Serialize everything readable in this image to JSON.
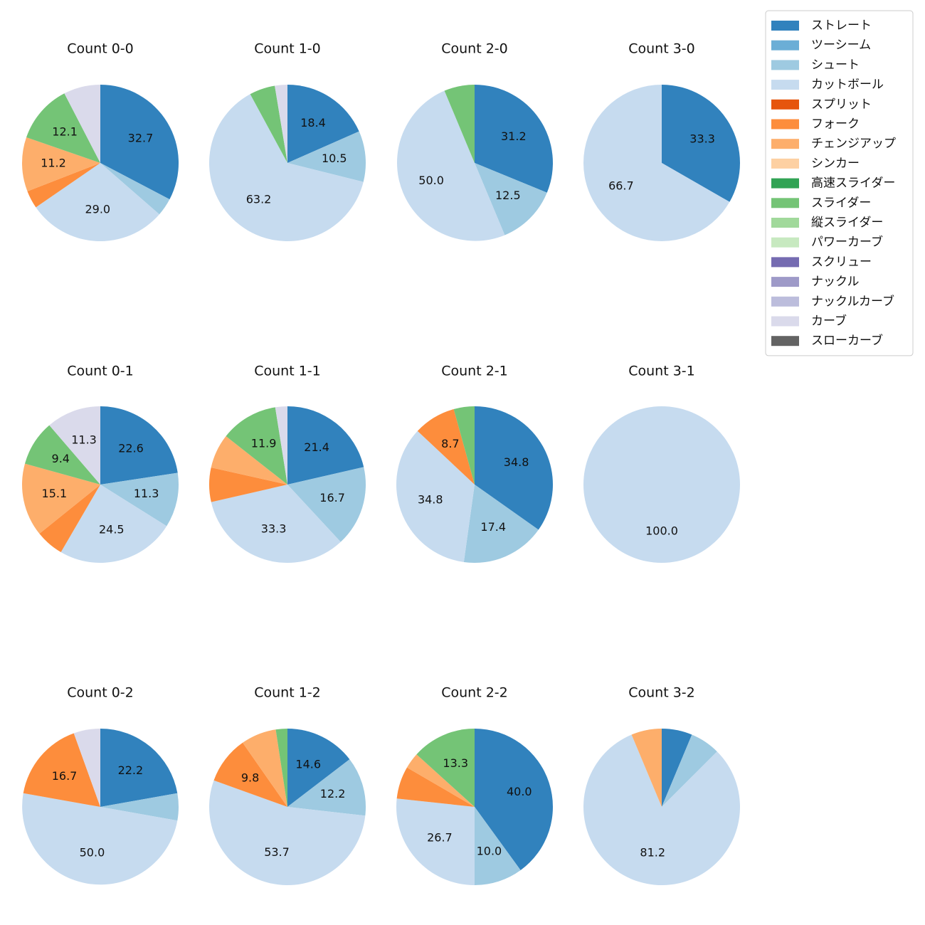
{
  "colors": {
    "ストレート": "#3182bd",
    "ツーシーム": "#6baed6",
    "シュート": "#9ecae1",
    "カットボール": "#c6dbef",
    "スプリット": "#e6550d",
    "フォーク": "#fd8d3c",
    "チェンジアップ": "#fdae6b",
    "シンカー": "#fdd0a2",
    "高速スライダー": "#31a354",
    "スライダー": "#74c476",
    "縦スライダー": "#a1d99b",
    "パワーカーブ": "#c7e9c0",
    "スクリュー": "#756bb1",
    "ナックル": "#9e9ac8",
    "ナックルカーブ": "#bcbddc",
    "カーブ": "#dadaeb",
    "スローカーブ": "#636363"
  },
  "chart_data": {
    "type": "pie",
    "legend_position": "top-right",
    "legend": [
      "ストレート",
      "ツーシーム",
      "シュート",
      "カットボール",
      "スプリット",
      "フォーク",
      "チェンジアップ",
      "シンカー",
      "高速スライダー",
      "スライダー",
      "縦スライダー",
      "パワーカーブ",
      "スクリュー",
      "ナックル",
      "ナックルカーブ",
      "カーブ",
      "スローカーブ"
    ],
    "charts": [
      {
        "title": "Count 0-0",
        "slices": [
          {
            "pitch": "ストレート",
            "value": 32.7,
            "label": "32.7"
          },
          {
            "pitch": "シュート",
            "value": 3.7
          },
          {
            "pitch": "カットボール",
            "value": 29.0,
            "label": "29.0"
          },
          {
            "pitch": "フォーク",
            "value": 3.7
          },
          {
            "pitch": "チェンジアップ",
            "value": 11.2,
            "label": "11.2"
          },
          {
            "pitch": "スライダー",
            "value": 12.1,
            "label": "12.1"
          },
          {
            "pitch": "カーブ",
            "value": 7.6
          }
        ]
      },
      {
        "title": "Count 1-0",
        "slices": [
          {
            "pitch": "ストレート",
            "value": 18.4,
            "label": "18.4"
          },
          {
            "pitch": "シュート",
            "value": 10.5,
            "label": "10.5"
          },
          {
            "pitch": "カットボール",
            "value": 63.2,
            "label": "63.2"
          },
          {
            "pitch": "スライダー",
            "value": 5.3
          },
          {
            "pitch": "カーブ",
            "value": 2.6
          }
        ]
      },
      {
        "title": "Count 2-0",
        "slices": [
          {
            "pitch": "ストレート",
            "value": 31.2,
            "label": "31.2"
          },
          {
            "pitch": "シュート",
            "value": 12.5,
            "label": "12.5"
          },
          {
            "pitch": "カットボール",
            "value": 50.0,
            "label": "50.0"
          },
          {
            "pitch": "スライダー",
            "value": 6.3
          }
        ]
      },
      {
        "title": "Count 3-0",
        "slices": [
          {
            "pitch": "ストレート",
            "value": 33.3,
            "label": "33.3"
          },
          {
            "pitch": "カットボール",
            "value": 66.7,
            "label": "66.7"
          }
        ]
      },
      {
        "title": "Count 0-1",
        "slices": [
          {
            "pitch": "ストレート",
            "value": 22.6,
            "label": "22.6"
          },
          {
            "pitch": "シュート",
            "value": 11.3,
            "label": "11.3"
          },
          {
            "pitch": "カットボール",
            "value": 24.5,
            "label": "24.5"
          },
          {
            "pitch": "フォーク",
            "value": 5.8
          },
          {
            "pitch": "チェンジアップ",
            "value": 15.1,
            "label": "15.1"
          },
          {
            "pitch": "スライダー",
            "value": 9.4,
            "label": "9.4"
          },
          {
            "pitch": "カーブ",
            "value": 11.3,
            "label": "11.3"
          }
        ]
      },
      {
        "title": "Count 1-1",
        "slices": [
          {
            "pitch": "ストレート",
            "value": 21.4,
            "label": "21.4"
          },
          {
            "pitch": "シュート",
            "value": 16.7,
            "label": "16.7"
          },
          {
            "pitch": "カットボール",
            "value": 33.3,
            "label": "33.3"
          },
          {
            "pitch": "フォーク",
            "value": 7.1
          },
          {
            "pitch": "チェンジアップ",
            "value": 7.1
          },
          {
            "pitch": "スライダー",
            "value": 11.9,
            "label": "11.9"
          },
          {
            "pitch": "カーブ",
            "value": 2.5
          }
        ]
      },
      {
        "title": "Count 2-1",
        "slices": [
          {
            "pitch": "ストレート",
            "value": 34.8,
            "label": "34.8"
          },
          {
            "pitch": "シュート",
            "value": 17.4,
            "label": "17.4"
          },
          {
            "pitch": "カットボール",
            "value": 34.8,
            "label": "34.8"
          },
          {
            "pitch": "フォーク",
            "value": 8.7,
            "label": "8.7"
          },
          {
            "pitch": "スライダー",
            "value": 4.3
          }
        ]
      },
      {
        "title": "Count 3-1",
        "slices": [
          {
            "pitch": "カットボール",
            "value": 100.0,
            "label": "100.0"
          }
        ]
      },
      {
        "title": "Count 0-2",
        "slices": [
          {
            "pitch": "ストレート",
            "value": 22.2,
            "label": "22.2"
          },
          {
            "pitch": "シュート",
            "value": 5.6
          },
          {
            "pitch": "カットボール",
            "value": 50.0,
            "label": "50.0"
          },
          {
            "pitch": "フォーク",
            "value": 16.7,
            "label": "16.7"
          },
          {
            "pitch": "カーブ",
            "value": 5.5
          }
        ]
      },
      {
        "title": "Count 1-2",
        "slices": [
          {
            "pitch": "ストレート",
            "value": 14.6,
            "label": "14.6"
          },
          {
            "pitch": "シュート",
            "value": 12.2,
            "label": "12.2"
          },
          {
            "pitch": "カットボール",
            "value": 53.7,
            "label": "53.7"
          },
          {
            "pitch": "フォーク",
            "value": 9.8,
            "label": "9.8"
          },
          {
            "pitch": "チェンジアップ",
            "value": 7.3
          },
          {
            "pitch": "スライダー",
            "value": 2.4
          }
        ]
      },
      {
        "title": "Count 2-2",
        "slices": [
          {
            "pitch": "ストレート",
            "value": 40.0,
            "label": "40.0"
          },
          {
            "pitch": "シュート",
            "value": 10.0,
            "label": "10.0"
          },
          {
            "pitch": "カットボール",
            "value": 26.7,
            "label": "26.7"
          },
          {
            "pitch": "フォーク",
            "value": 6.7
          },
          {
            "pitch": "チェンジアップ",
            "value": 3.3
          },
          {
            "pitch": "スライダー",
            "value": 13.3,
            "label": "13.3"
          }
        ]
      },
      {
        "title": "Count 3-2",
        "slices": [
          {
            "pitch": "ストレート",
            "value": 6.3
          },
          {
            "pitch": "シュート",
            "value": 6.2
          },
          {
            "pitch": "カットボール",
            "value": 81.2,
            "label": "81.2"
          },
          {
            "pitch": "チェンジアップ",
            "value": 6.3
          }
        ]
      }
    ]
  }
}
